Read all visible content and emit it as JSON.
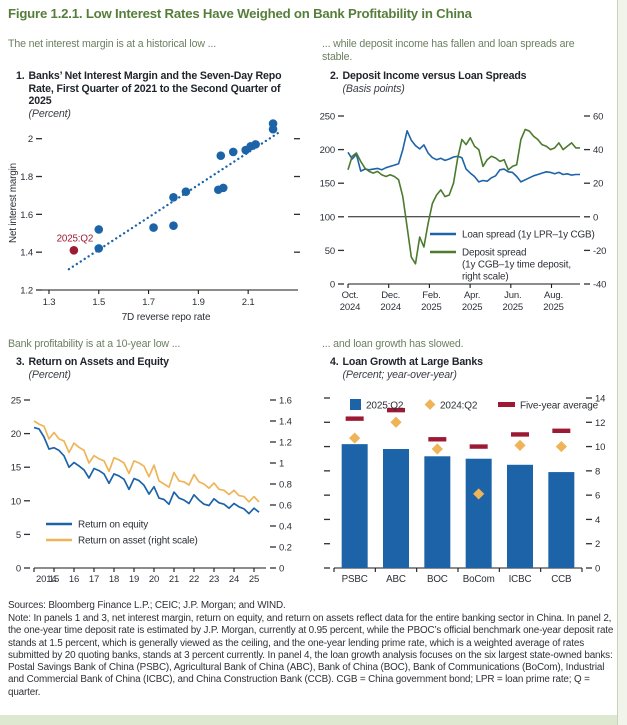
{
  "figure": {
    "title": "Figure 1.2.1. Low Interest Rates Have Weighed on Bank Profitability in China"
  },
  "decks": {
    "top_left": "The net interest margin is at a historical low ...",
    "top_right": "... while deposit income has fallen and loan spreads are stable.",
    "bottom_left": "Bank profitability is at a 10-year low ...",
    "bottom_right": "... and loan growth has slowed."
  },
  "panels": [
    {
      "number": "1.",
      "title": "Banks’ Net Interest Margin and the Seven-Day Repo Rate, First Quarter of 2021 to the Second Quarter of 2025",
      "subtitle": "(Percent)"
    },
    {
      "number": "2.",
      "title": "Deposit Income versus Loan Spreads",
      "subtitle": "(Basis points)"
    },
    {
      "number": "3.",
      "title": "Return on Assets and Equity",
      "subtitle": "(Percent)"
    },
    {
      "number": "4.",
      "title": "Loan Growth at Large Banks",
      "subtitle": "(Percent; year-over-year)"
    }
  ],
  "footer": {
    "sources": "Sources: Bloomberg Finance L.P.; CEIC; J.P. Morgan; and WIND.",
    "note": "Note: In panels 1 and 3, net interest margin, return on equity, and return on assets reflect data for the entire banking sector in China. In panel 2, the one-year time deposit rate is estimated by J.P. Morgan, currently at 0.95 percent, while the PBOC’s official benchmark one-year deposit rate stands at 1.5 percent, which is generally viewed as the ceiling, and the one-year lending prime rate, which is a weighted average of rates submitted by 20 quoting banks, stands at 3 percent currently. In panel 4, the loan growth analysis focuses on the six largest state-owned banks: Postal Savings Bank of China (PSBC), Agricultural Bank of China (ABC), Bank of China (BOC), Bank of Communications (BoCom), Industrial and Commercial Bank of China (ICBC), and China Construction Bank (CCB). CGB = China government bond; LPR = loan prime rate; Q = quarter."
  },
  "colors": {
    "blue": "#1d63a8",
    "green_line": "#4c7a2f",
    "yellow": "#efb457",
    "red": "#9c1a33",
    "title_green": "#567e3b",
    "deck_green": "#6c8060",
    "axis_text": "#2b2f36",
    "axis_line": "#1a1a1a"
  },
  "chart_data": [
    {
      "type": "scatter",
      "title": "Banks' Net Interest Margin and the Seven-Day Repo Rate, First Quarter of 2021 to the Second Quarter of 2025",
      "units": "Percent",
      "xlabel": "7D reverse repo rate",
      "ylabel": "Net interest margin",
      "xlim": [
        1.28,
        2.26
      ],
      "ylim": [
        1.2,
        2.12
      ],
      "x_ticks": [
        1.3,
        1.5,
        1.7,
        1.9,
        2.1
      ],
      "y_ticks": [
        1.2,
        1.4,
        1.6,
        1.8,
        2
      ],
      "y_tick_labels": [
        "1.2",
        "1.4",
        "1.6",
        "1.8",
        "2"
      ],
      "right_tick_values": [
        1.4,
        1.6,
        1.8,
        2.0
      ],
      "points": [
        [
          1.5,
          1.42
        ],
        [
          1.5,
          1.52
        ],
        [
          1.72,
          1.53
        ],
        [
          1.8,
          1.54
        ],
        [
          1.8,
          1.69
        ],
        [
          1.85,
          1.72
        ],
        [
          1.98,
          1.73
        ],
        [
          2.0,
          1.74
        ],
        [
          1.99,
          1.91
        ],
        [
          2.04,
          1.93
        ],
        [
          2.09,
          1.94
        ],
        [
          2.11,
          1.96
        ],
        [
          2.13,
          1.97
        ],
        [
          2.2,
          2.05
        ],
        [
          2.2,
          2.08
        ]
      ],
      "highlight_point": {
        "x": 1.4,
        "y": 1.41,
        "label": "2025:Q2"
      },
      "trendline": {
        "x1": 1.38,
        "y1": 1.31,
        "x2": 2.22,
        "y2": 2.03,
        "style": "dotted"
      }
    },
    {
      "type": "line",
      "title": "Deposit Income versus Loan Spreads",
      "units": "Basis points",
      "x_span_months": 11.4,
      "x_ticks": [
        {
          "pos": 0,
          "line1": "Oct.",
          "line2": "2024"
        },
        {
          "pos": 2,
          "line1": "Dec.",
          "line2": "2024"
        },
        {
          "pos": 4,
          "line1": "Feb.",
          "line2": "2025"
        },
        {
          "pos": 6,
          "line1": "Apr.",
          "line2": "2025"
        },
        {
          "pos": 8,
          "line1": "Jun.",
          "line2": "2025"
        },
        {
          "pos": 10,
          "line1": "Aug.",
          "line2": "2025"
        }
      ],
      "left_axis": {
        "lim": [
          0,
          250
        ],
        "ticks": [
          0,
          50,
          100,
          150,
          200,
          250
        ],
        "labels": [
          "0",
          "50",
          "100",
          "150",
          "200",
          "250"
        ]
      },
      "right_axis": {
        "lim": [
          -40,
          60
        ],
        "ticks": [
          -40,
          -20,
          0,
          20,
          40,
          60
        ],
        "labels": [
          "-40",
          "-20",
          "0",
          "20",
          "40",
          "60"
        ]
      },
      "zero_line_right_value": 0,
      "series": [
        {
          "name": "Loan spread (1y LPR–1y CGB)",
          "scale": "left",
          "color": "#1d63a8",
          "values": [
            196,
            186,
            193,
            168,
            171,
            170,
            171,
            172,
            170,
            173,
            175,
            177,
            179,
            200,
            228,
            214,
            206,
            201,
            207,
            195,
            188,
            185,
            187,
            184,
            186,
            189,
            190,
            188,
            171,
            165,
            160,
            152,
            154,
            153,
            158,
            161,
            170,
            171,
            167,
            166,
            160,
            152,
            155,
            158,
            161,
            163,
            165,
            167,
            166,
            164,
            166,
            163,
            164,
            162,
            163,
            163
          ]
        },
        {
          "name": "Deposit spread (1y CGB–1y time deposit, right scale)",
          "scale": "right",
          "color": "#4c7a2f",
          "values": [
            28,
            36,
            38,
            33,
            29,
            27,
            26,
            27,
            25,
            24,
            25,
            24,
            22,
            12,
            -6,
            -24,
            -28,
            -12,
            -18,
            -4,
            8,
            13,
            16,
            12,
            13,
            20,
            35,
            46,
            43,
            47,
            42,
            40,
            30,
            34,
            36,
            35,
            33,
            34,
            28,
            30,
            31,
            46,
            52,
            51,
            48,
            46,
            43,
            42,
            40,
            41,
            44,
            40,
            42,
            44,
            41,
            41
          ]
        }
      ],
      "legend": {
        "loan_label": "Loan spread (1y LPR–1y CGB)",
        "deposit_label_lines": [
          "Deposit spread",
          "(1y CGB–1y time deposit,",
          "right scale)"
        ]
      }
    },
    {
      "type": "line",
      "title": "Return on Assets and Equity",
      "units": "Percent",
      "x_lim": [
        2014,
        2025.6
      ],
      "x_ticks": [
        2014,
        2015,
        2016,
        2017,
        2018,
        2019,
        2020,
        2021,
        2022,
        2023,
        2024,
        2025
      ],
      "x_tick_labels": [
        "2014",
        "15",
        "16",
        "17",
        "18",
        "19",
        "20",
        "21",
        "22",
        "23",
        "24",
        "25"
      ],
      "left_axis": {
        "lim": [
          0,
          25
        ],
        "ticks": [
          0,
          5,
          10,
          15,
          20,
          25
        ],
        "labels": [
          "0",
          "5",
          "10",
          "15",
          "20",
          "25"
        ]
      },
      "right_axis": {
        "lim": [
          0,
          1.6
        ],
        "ticks": [
          0,
          0.2,
          0.4,
          0.6,
          0.8,
          1,
          1.2,
          1.4,
          1.6
        ],
        "labels": [
          "0",
          "0.2",
          "0.4",
          "0.6",
          "0.8",
          "1",
          "1.2",
          "1.4",
          "1.6"
        ]
      },
      "frequency": "quarterly, 2014Q1-2025Q2",
      "series": [
        {
          "name": "Return on equity",
          "scale": "left",
          "color": "#1d63a8",
          "values": [
            20.9,
            20.7,
            19.5,
            17.7,
            17.9,
            17.5,
            16.7,
            15.0,
            15.7,
            15.2,
            14.6,
            13.4,
            14.8,
            14.5,
            14.0,
            12.6,
            14.0,
            13.7,
            13.2,
            11.7,
            13.3,
            13.0,
            12.3,
            11.0,
            12.1,
            10.4,
            10.2,
            9.5,
            11.3,
            10.4,
            10.1,
            9.6,
            10.9,
            10.1,
            9.5,
            9.3,
            10.3,
            9.7,
            9.5,
            8.9,
            9.6,
            9.1,
            8.8,
            8.1,
            8.9,
            8.3
          ]
        },
        {
          "name": "Return on asset (right scale)",
          "scale": "right",
          "color": "#efb457",
          "values": [
            1.4,
            1.37,
            1.35,
            1.23,
            1.29,
            1.23,
            1.21,
            1.1,
            1.19,
            1.15,
            1.12,
            1.0,
            1.07,
            1.04,
            1.02,
            0.92,
            1.05,
            1.03,
            1.0,
            0.9,
            1.02,
            1.0,
            0.97,
            0.87,
            0.98,
            0.83,
            0.8,
            0.77,
            0.91,
            0.83,
            0.82,
            0.79,
            0.89,
            0.82,
            0.8,
            0.76,
            0.81,
            0.75,
            0.74,
            0.7,
            0.74,
            0.69,
            0.68,
            0.63,
            0.68,
            0.63
          ]
        }
      ],
      "legend": {
        "roe_label": "Return on equity",
        "roa_label": "Return on asset (right scale)"
      }
    },
    {
      "type": "bar",
      "title": "Loan Growth at Large Banks",
      "units": "Percent; year-over-year",
      "categories": [
        "PSBC",
        "ABC",
        "BOC",
        "BoCom",
        "ICBC",
        "CCB"
      ],
      "ylim": [
        0,
        14
      ],
      "y_ticks": [
        0,
        2,
        4,
        6,
        8,
        10,
        12,
        14
      ],
      "y_tick_labels": [
        "0",
        "2",
        "4",
        "6",
        "8",
        "10",
        "12",
        "14"
      ],
      "series": [
        {
          "name": "2025:Q2",
          "marker": "bar",
          "color": "#1d63a8",
          "values": [
            10.2,
            9.8,
            9.2,
            9.0,
            8.5,
            7.9
          ]
        },
        {
          "name": "2024:Q2",
          "marker": "diamond",
          "color": "#efb457",
          "values": [
            10.7,
            12.0,
            9.8,
            6.1,
            10.1,
            10.0
          ]
        },
        {
          "name": "Five-year average",
          "marker": "dash",
          "color": "#9c1a33",
          "values": [
            12.3,
            13.0,
            10.6,
            10.0,
            11.0,
            11.3
          ]
        }
      ],
      "legend_labels": [
        "2025:Q2",
        "2024:Q2",
        "Five-year average"
      ]
    }
  ]
}
